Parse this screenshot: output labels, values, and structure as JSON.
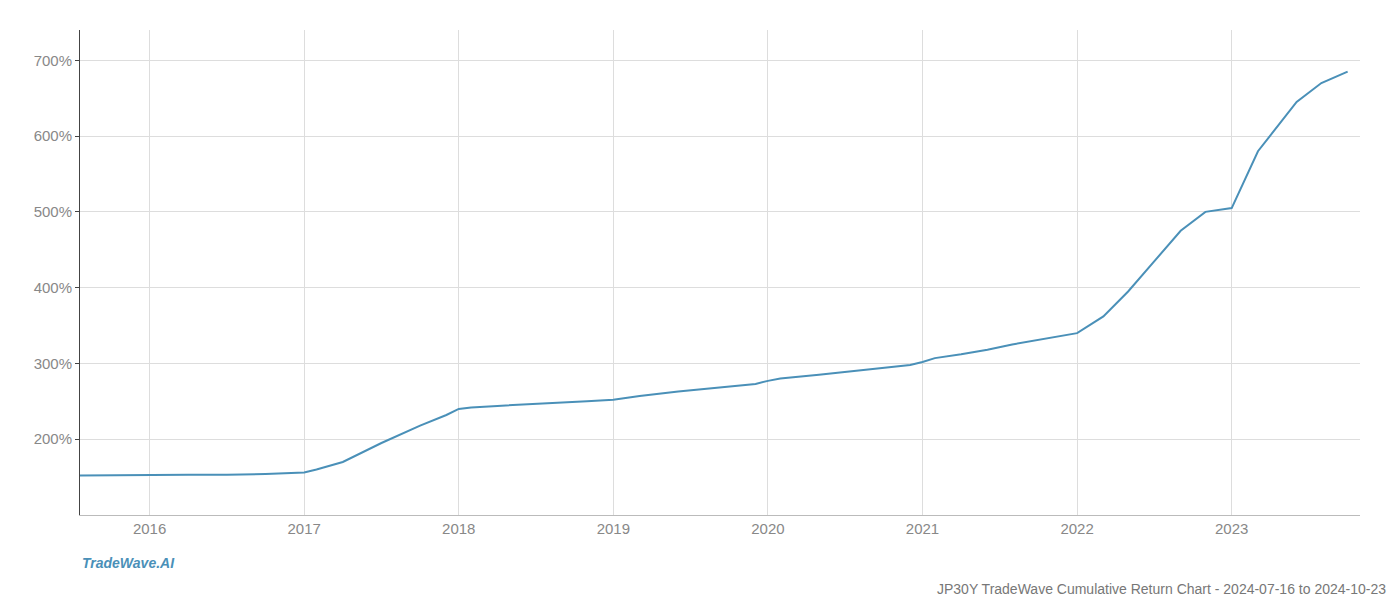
{
  "chart_data": {
    "type": "line",
    "title": "JP30Y TradeWave Cumulative Return Chart - 2024-07-16 to 2024-10-23",
    "annotations": [
      "TradeWave.AI"
    ],
    "x": [
      2015.55,
      2016.0,
      2016.25,
      2016.5,
      2016.75,
      2017.0,
      2017.08,
      2017.25,
      2017.5,
      2017.75,
      2017.92,
      2018.0,
      2018.08,
      2018.25,
      2018.5,
      2018.67,
      2018.83,
      2019.0,
      2019.17,
      2019.42,
      2019.67,
      2019.92,
      2020.0,
      2020.08,
      2020.33,
      2020.5,
      2020.67,
      2020.92,
      2021.0,
      2021.08,
      2021.25,
      2021.42,
      2021.58,
      2021.75,
      2021.92,
      2022.0,
      2022.17,
      2022.33,
      2022.5,
      2022.67,
      2022.83,
      2023.0,
      2023.17,
      2023.42,
      2023.58,
      2023.75
    ],
    "values": [
      152,
      153,
      153,
      153,
      154,
      156,
      160,
      170,
      195,
      218,
      232,
      240,
      242,
      244,
      247,
      249,
      250,
      252,
      257,
      263,
      268,
      273,
      277,
      280,
      285,
      289,
      293,
      298,
      302,
      307,
      312,
      318,
      325,
      331,
      337,
      340,
      362,
      395,
      435,
      475,
      500,
      505,
      580,
      645,
      670,
      685
    ],
    "color": "#4a90b8",
    "xlim": [
      2015.55,
      2023.83
    ],
    "ylim": [
      100,
      740
    ],
    "xticks": [
      2016,
      2017,
      2018,
      2019,
      2020,
      2021,
      2022,
      2023
    ],
    "yticks": [
      {
        "value": 200,
        "label": "200%"
      },
      {
        "value": 300,
        "label": "300%"
      },
      {
        "value": 400,
        "label": "400%"
      },
      {
        "value": 500,
        "label": "500%"
      },
      {
        "value": 600,
        "label": "600%"
      },
      {
        "value": 700,
        "label": "700%"
      }
    ],
    "grid": true
  }
}
